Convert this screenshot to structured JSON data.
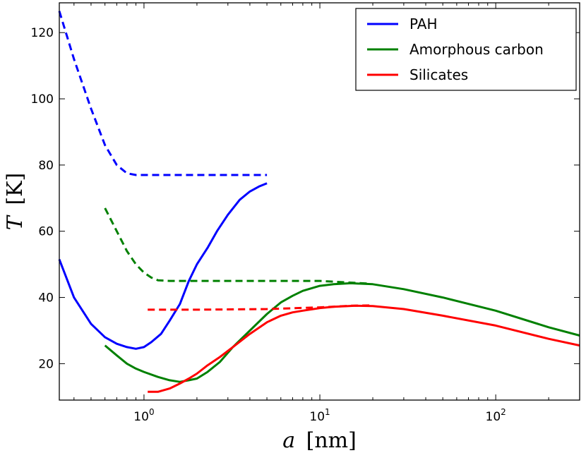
{
  "chart_data": {
    "type": "line",
    "title": "",
    "xlabel_var": "a",
    "xlabel_unit": "[nm]",
    "ylabel_var": "T",
    "ylabel_unit": "[K]",
    "xscale": "log",
    "xlim": [
      0.33,
      300
    ],
    "ylim": [
      9,
      129
    ],
    "x_ticks": [
      {
        "value": 1,
        "base": "10",
        "exp": "0"
      },
      {
        "value": 10,
        "base": "10",
        "exp": "1"
      },
      {
        "value": 100,
        "base": "10",
        "exp": "2"
      }
    ],
    "y_ticks": [
      20,
      40,
      60,
      80,
      100,
      120
    ],
    "legend_position": "top-right",
    "series": [
      {
        "name": "PAH",
        "color": "#0000ff",
        "style": "solid",
        "legend": true,
        "points": [
          [
            0.33,
            51.5
          ],
          [
            0.4,
            40
          ],
          [
            0.5,
            32
          ],
          [
            0.6,
            28
          ],
          [
            0.7,
            26
          ],
          [
            0.8,
            25
          ],
          [
            0.9,
            24.5
          ],
          [
            1.0,
            25
          ],
          [
            1.1,
            26.5
          ],
          [
            1.25,
            29
          ],
          [
            1.4,
            33
          ],
          [
            1.6,
            38
          ],
          [
            1.8,
            45
          ],
          [
            2.0,
            50
          ],
          [
            2.3,
            55
          ],
          [
            2.6,
            60
          ],
          [
            3.0,
            65
          ],
          [
            3.5,
            69.5
          ],
          [
            4.0,
            72
          ],
          [
            4.5,
            73.5
          ],
          [
            5.0,
            74.5
          ]
        ]
      },
      {
        "name": "PAH (dashed)",
        "color": "#0000ff",
        "style": "dashed",
        "legend": false,
        "points": [
          [
            0.33,
            126.5
          ],
          [
            0.4,
            112
          ],
          [
            0.5,
            97
          ],
          [
            0.6,
            86
          ],
          [
            0.7,
            80
          ],
          [
            0.8,
            77.5
          ],
          [
            0.9,
            77
          ],
          [
            1.0,
            77
          ],
          [
            2.0,
            77
          ],
          [
            5.0,
            77
          ]
        ]
      },
      {
        "name": "Amorphous carbon",
        "color": "#008000",
        "style": "solid",
        "legend": true,
        "points": [
          [
            0.6,
            25.5
          ],
          [
            0.7,
            22.5
          ],
          [
            0.8,
            20
          ],
          [
            0.9,
            18.5
          ],
          [
            1.0,
            17.5
          ],
          [
            1.2,
            16
          ],
          [
            1.4,
            15
          ],
          [
            1.6,
            14.5
          ],
          [
            1.8,
            15
          ],
          [
            2.0,
            15.5
          ],
          [
            2.3,
            17.5
          ],
          [
            2.7,
            20.5
          ],
          [
            3.2,
            25
          ],
          [
            4.0,
            30
          ],
          [
            5.0,
            35
          ],
          [
            6.0,
            38.5
          ],
          [
            7.0,
            40.5
          ],
          [
            8.0,
            42
          ],
          [
            10,
            43.5
          ],
          [
            12,
            44
          ],
          [
            15,
            44.3
          ],
          [
            20,
            44
          ],
          [
            30,
            42.5
          ],
          [
            50,
            40
          ],
          [
            100,
            36
          ],
          [
            200,
            31
          ],
          [
            300,
            28.5
          ]
        ]
      },
      {
        "name": "Amorphous carbon (dashed)",
        "color": "#008000",
        "style": "dashed",
        "legend": false,
        "points": [
          [
            0.6,
            67
          ],
          [
            0.7,
            60
          ],
          [
            0.8,
            54
          ],
          [
            0.9,
            50
          ],
          [
            1.0,
            47.5
          ],
          [
            1.1,
            46
          ],
          [
            1.2,
            45.2
          ],
          [
            1.4,
            45
          ],
          [
            2.0,
            45
          ],
          [
            5.0,
            45
          ],
          [
            10,
            45
          ],
          [
            19,
            44.2
          ]
        ]
      },
      {
        "name": "Silicates",
        "color": "#ff0000",
        "style": "solid",
        "legend": true,
        "points": [
          [
            1.05,
            11.5
          ],
          [
            1.2,
            11.5
          ],
          [
            1.4,
            12.5
          ],
          [
            1.6,
            14
          ],
          [
            1.8,
            15.5
          ],
          [
            2.0,
            17
          ],
          [
            2.3,
            19.5
          ],
          [
            2.7,
            22
          ],
          [
            3.2,
            25
          ],
          [
            4.0,
            29
          ],
          [
            5.0,
            32.5
          ],
          [
            6.0,
            34.5
          ],
          [
            7.0,
            35.5
          ],
          [
            8.0,
            36
          ],
          [
            10,
            36.8
          ],
          [
            12,
            37.2
          ],
          [
            16,
            37.5
          ],
          [
            20,
            37.4
          ],
          [
            30,
            36.5
          ],
          [
            50,
            34.5
          ],
          [
            100,
            31.5
          ],
          [
            200,
            27.5
          ],
          [
            300,
            25.5
          ]
        ]
      },
      {
        "name": "Silicates (dashed)",
        "color": "#ff0000",
        "style": "dashed",
        "legend": false,
        "points": [
          [
            1.05,
            36.3
          ],
          [
            2.0,
            36.3
          ],
          [
            5.0,
            36.5
          ],
          [
            10,
            37
          ],
          [
            15,
            37.5
          ],
          [
            20,
            37.6
          ]
        ]
      }
    ]
  }
}
